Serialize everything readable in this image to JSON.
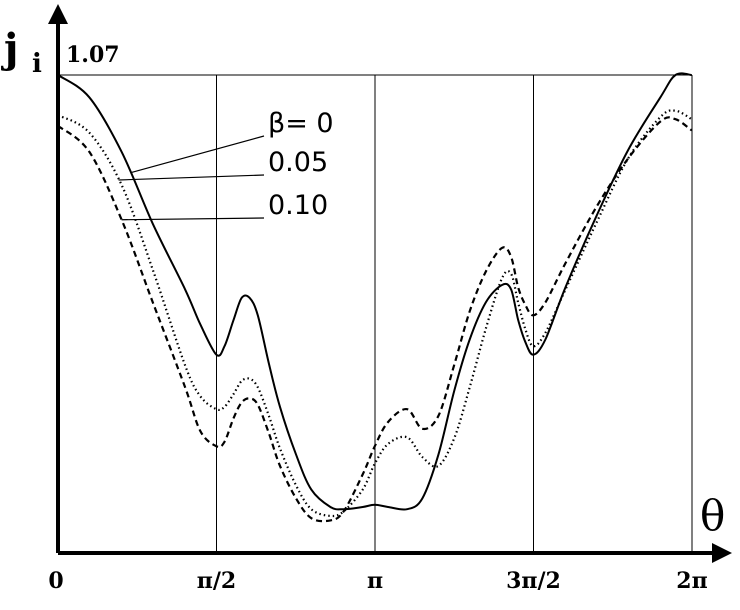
{
  "chart_data": {
    "type": "line",
    "title": "",
    "ylabel": "j",
    "ylabel_subscript": "i",
    "xlabel": "θ",
    "ymax_label": "1.07",
    "xticks": [
      {
        "value": 0,
        "label": "0"
      },
      {
        "value": 1.5708,
        "label": "π/2"
      },
      {
        "value": 3.1416,
        "label": "π"
      },
      {
        "value": 4.7124,
        "label": "3π/2"
      },
      {
        "value": 6.2832,
        "label": "2π"
      }
    ],
    "xlim": [
      0,
      6.2832
    ],
    "ylim": [
      0,
      1.07
    ],
    "grid": "vertical lines at π/2, π, 3π/2, 2π; horizontal line at top (1.07)",
    "series": [
      {
        "name": "β= 0",
        "style": "solid",
        "color": "#000000",
        "points": [
          [
            0.0,
            1.07
          ],
          [
            0.31,
            1.02
          ],
          [
            0.63,
            0.898
          ],
          [
            0.94,
            0.737
          ],
          [
            1.26,
            0.59
          ],
          [
            1.41,
            0.512
          ],
          [
            1.57,
            0.444
          ],
          [
            1.65,
            0.463
          ],
          [
            1.74,
            0.522
          ],
          [
            1.82,
            0.571
          ],
          [
            1.9,
            0.571
          ],
          [
            1.98,
            0.532
          ],
          [
            2.09,
            0.424
          ],
          [
            2.2,
            0.327
          ],
          [
            2.36,
            0.22
          ],
          [
            2.51,
            0.142
          ],
          [
            2.7,
            0.103
          ],
          [
            2.83,
            0.098
          ],
          [
            3.02,
            0.103
          ],
          [
            3.14,
            0.108
          ],
          [
            3.27,
            0.103
          ],
          [
            3.46,
            0.098
          ],
          [
            3.61,
            0.122
          ],
          [
            3.77,
            0.22
          ],
          [
            3.93,
            0.366
          ],
          [
            4.08,
            0.478
          ],
          [
            4.24,
            0.561
          ],
          [
            4.4,
            0.6
          ],
          [
            4.49,
            0.59
          ],
          [
            4.56,
            0.522
          ],
          [
            4.63,
            0.473
          ],
          [
            4.71,
            0.444
          ],
          [
            4.83,
            0.478
          ],
          [
            5.03,
            0.595
          ],
          [
            5.34,
            0.756
          ],
          [
            5.65,
            0.902
          ],
          [
            5.97,
            1.02
          ],
          [
            6.12,
            1.07
          ],
          [
            6.28,
            1.07
          ]
        ]
      },
      {
        "name": "0.05",
        "style": "dotted",
        "color": "#000000",
        "points": [
          [
            0.0,
            0.98
          ],
          [
            0.31,
            0.941
          ],
          [
            0.63,
            0.824
          ],
          [
            0.94,
            0.634
          ],
          [
            1.26,
            0.42
          ],
          [
            1.41,
            0.351
          ],
          [
            1.57,
            0.322
          ],
          [
            1.65,
            0.327
          ],
          [
            1.74,
            0.356
          ],
          [
            1.82,
            0.385
          ],
          [
            1.9,
            0.39
          ],
          [
            1.98,
            0.371
          ],
          [
            2.09,
            0.307
          ],
          [
            2.2,
            0.234
          ],
          [
            2.36,
            0.151
          ],
          [
            2.51,
            0.098
          ],
          [
            2.7,
            0.083
          ],
          [
            2.83,
            0.093
          ],
          [
            3.02,
            0.142
          ],
          [
            3.14,
            0.2
          ],
          [
            3.27,
            0.244
          ],
          [
            3.46,
            0.259
          ],
          [
            3.61,
            0.215
          ],
          [
            3.77,
            0.195
          ],
          [
            3.93,
            0.259
          ],
          [
            4.08,
            0.371
          ],
          [
            4.24,
            0.502
          ],
          [
            4.4,
            0.615
          ],
          [
            4.49,
            0.625
          ],
          [
            4.56,
            0.561
          ],
          [
            4.63,
            0.502
          ],
          [
            4.71,
            0.463
          ],
          [
            4.83,
            0.493
          ],
          [
            5.03,
            0.59
          ],
          [
            5.34,
            0.741
          ],
          [
            5.65,
            0.883
          ],
          [
            5.97,
            0.976
          ],
          [
            6.12,
            0.99
          ],
          [
            6.28,
            0.971
          ]
        ]
      },
      {
        "name": "0.10",
        "style": "dashed",
        "color": "#000000",
        "points": [
          [
            0.0,
            0.956
          ],
          [
            0.31,
            0.898
          ],
          [
            0.63,
            0.746
          ],
          [
            0.94,
            0.561
          ],
          [
            1.26,
            0.371
          ],
          [
            1.41,
            0.273
          ],
          [
            1.57,
            0.239
          ],
          [
            1.65,
            0.249
          ],
          [
            1.74,
            0.302
          ],
          [
            1.82,
            0.337
          ],
          [
            1.9,
            0.346
          ],
          [
            1.98,
            0.332
          ],
          [
            2.09,
            0.268
          ],
          [
            2.2,
            0.195
          ],
          [
            2.36,
            0.122
          ],
          [
            2.51,
            0.078
          ],
          [
            2.7,
            0.073
          ],
          [
            2.83,
            0.093
          ],
          [
            3.02,
            0.176
          ],
          [
            3.14,
            0.239
          ],
          [
            3.27,
            0.293
          ],
          [
            3.46,
            0.322
          ],
          [
            3.61,
            0.278
          ],
          [
            3.77,
            0.307
          ],
          [
            3.93,
            0.424
          ],
          [
            4.08,
            0.541
          ],
          [
            4.24,
            0.63
          ],
          [
            4.4,
            0.683
          ],
          [
            4.49,
            0.663
          ],
          [
            4.56,
            0.595
          ],
          [
            4.63,
            0.556
          ],
          [
            4.71,
            0.532
          ],
          [
            4.83,
            0.561
          ],
          [
            5.03,
            0.649
          ],
          [
            5.34,
            0.776
          ],
          [
            5.65,
            0.883
          ],
          [
            5.97,
            0.966
          ],
          [
            6.12,
            0.971
          ],
          [
            6.28,
            0.946
          ]
        ]
      }
    ],
    "legend": {
      "placement": "upper-middle",
      "entries": [
        "β= 0",
        "0.05",
        "0.10"
      ]
    }
  }
}
